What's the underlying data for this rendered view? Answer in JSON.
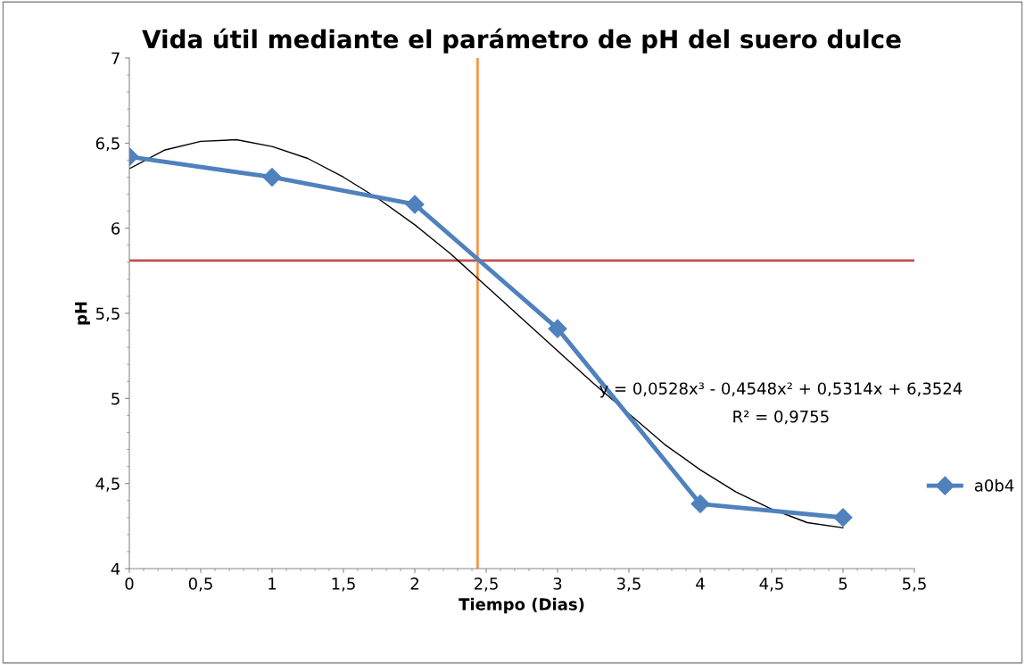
{
  "chart_data": {
    "type": "line",
    "title": "Vida útil mediante el parámetro de pH del suero dulce",
    "xlabel": "Tiempo (Dias)",
    "ylabel": "pH",
    "series": [
      {
        "name": "a0b4",
        "color": "#4f81bd",
        "x": [
          0,
          1,
          2,
          3,
          4,
          5
        ],
        "values": [
          6.42,
          6.3,
          6.14,
          5.41,
          4.38,
          4.3
        ],
        "marker": "diamond"
      },
      {
        "type": "line",
        "color": "#000000",
        "marker": "none",
        "x": [
          0,
          0.25,
          0.5,
          0.75,
          1,
          1.25,
          1.5,
          1.75,
          2,
          2.25,
          2.5,
          2.75,
          3,
          3.25,
          3.5,
          3.75,
          4,
          4.25,
          4.5,
          4.75,
          5
        ],
        "values": [
          6.35,
          6.46,
          6.51,
          6.52,
          6.48,
          6.41,
          6.3,
          6.17,
          6.02,
          5.85,
          5.66,
          5.47,
          5.28,
          5.09,
          4.91,
          4.73,
          4.58,
          4.45,
          4.35,
          4.27,
          4.24
        ]
      }
    ],
    "ref_lines": [
      {
        "axis": "y",
        "value": 5.81,
        "color": "#c0504d"
      },
      {
        "axis": "x",
        "value": 2.44,
        "color": "#f79646"
      }
    ],
    "annotations": [
      "y = 0,0528x³ - 0,4548x² + 0,5314x + 6,3524",
      "R² = 0,9755"
    ],
    "xlim": [
      0,
      5.5
    ],
    "ylim": [
      4,
      7
    ],
    "xticks": [
      0,
      {
        "value": 0.5,
        "label": "0,5"
      },
      1,
      {
        "value": 1.5,
        "label": "1,5"
      },
      2,
      {
        "value": 2.5,
        "label": "2,5"
      },
      3,
      {
        "value": 3.5,
        "label": "3,5"
      },
      4,
      {
        "value": 4.5,
        "label": "4,5"
      },
      5,
      {
        "value": 5.5,
        "label": "5,5"
      }
    ],
    "yticks": [
      4,
      {
        "value": 4.5,
        "label": "4,5"
      },
      5,
      {
        "value": 5.5,
        "label": "5,5"
      },
      6,
      {
        "value": 6.5,
        "label": "6,5"
      },
      7
    ],
    "grid": false,
    "legend": "right"
  }
}
